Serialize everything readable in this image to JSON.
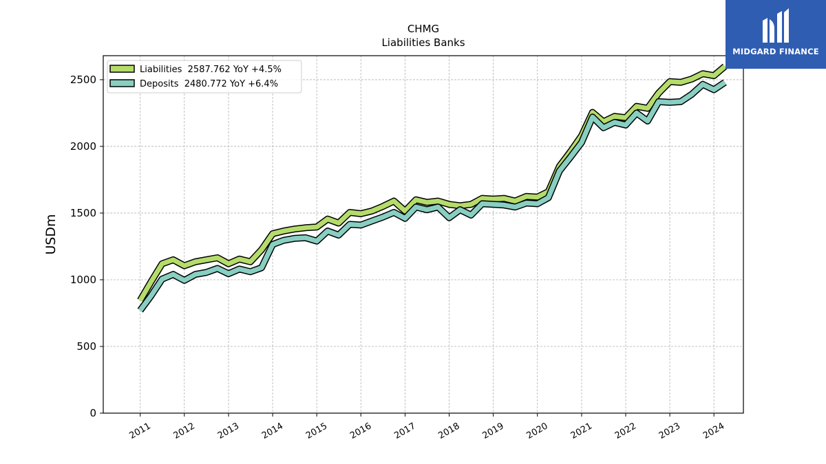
{
  "chart_data": {
    "type": "line",
    "title": "CHMG",
    "subtitle": "Liabilities Banks",
    "xlabel": "",
    "ylabel": "USDm",
    "ylim": [
      0,
      2680
    ],
    "yticks": [
      0,
      500,
      1000,
      1500,
      2000,
      2500
    ],
    "xticks": [
      "2011",
      "2012",
      "2013",
      "2014",
      "2015",
      "2016",
      "2017",
      "2018",
      "2019",
      "2020",
      "2021",
      "2022",
      "2023",
      "2024"
    ],
    "xlim": [
      "2010-03-01",
      "2024-09-01"
    ],
    "grid": true,
    "legend_position": "top-left",
    "x": [
      "2011-01-01",
      "2011-04-01",
      "2011-07-01",
      "2011-10-01",
      "2012-01-01",
      "2012-04-01",
      "2012-07-01",
      "2012-10-01",
      "2013-01-01",
      "2013-04-01",
      "2013-07-01",
      "2013-10-01",
      "2014-01-01",
      "2014-04-01",
      "2014-07-01",
      "2014-10-01",
      "2015-01-01",
      "2015-04-01",
      "2015-07-01",
      "2015-10-01",
      "2016-01-01",
      "2016-04-01",
      "2016-07-01",
      "2016-10-01",
      "2017-01-01",
      "2017-04-01",
      "2017-07-01",
      "2017-10-01",
      "2018-01-01",
      "2018-04-01",
      "2018-07-01",
      "2018-10-01",
      "2019-01-01",
      "2019-04-01",
      "2019-07-01",
      "2019-10-01",
      "2020-01-01",
      "2020-04-01",
      "2020-07-01",
      "2020-10-01",
      "2021-01-01",
      "2021-04-01",
      "2021-07-01",
      "2021-10-01",
      "2022-01-01",
      "2022-04-01",
      "2022-07-01",
      "2022-10-01",
      "2023-01-01",
      "2023-04-01",
      "2023-07-01",
      "2023-10-01",
      "2024-01-01",
      "2024-04-01"
    ],
    "series": [
      {
        "name": "Liabilities",
        "legend": "Liabilities  2587.762 YoY +4.5%",
        "color": "#b5dc6b",
        "values": [
          845,
          985,
          1120,
          1150,
          1105,
          1135,
          1150,
          1165,
          1120,
          1155,
          1135,
          1225,
          1345,
          1365,
          1380,
          1390,
          1395,
          1455,
          1425,
          1505,
          1495,
          1515,
          1550,
          1590,
          1515,
          1600,
          1580,
          1590,
          1565,
          1555,
          1565,
          1610,
          1605,
          1610,
          1590,
          1625,
          1620,
          1660,
          1850,
          1960,
          2080,
          2255,
          2185,
          2225,
          2215,
          2300,
          2285,
          2400,
          2485,
          2480,
          2505,
          2545,
          2530,
          2600
        ]
      },
      {
        "name": "Deposits",
        "legend": "Deposits  2480.772 YoY +6.4%",
        "color": "#88cfc2",
        "values": [
          770,
          880,
          1005,
          1040,
          995,
          1040,
          1055,
          1085,
          1045,
          1080,
          1060,
          1090,
          1265,
          1295,
          1310,
          1315,
          1290,
          1365,
          1335,
          1415,
          1410,
          1440,
          1470,
          1505,
          1460,
          1545,
          1525,
          1545,
          1465,
          1525,
          1485,
          1570,
          1565,
          1560,
          1545,
          1575,
          1570,
          1615,
          1815,
          1920,
          2030,
          2220,
          2140,
          2180,
          2160,
          2250,
          2190,
          2335,
          2330,
          2335,
          2390,
          2465,
          2425,
          2480
        ]
      }
    ]
  },
  "logo": {
    "text": "MIDGARD FINANCE",
    "color": "#2f5db2",
    "icon": "midgard-logo-icon"
  }
}
